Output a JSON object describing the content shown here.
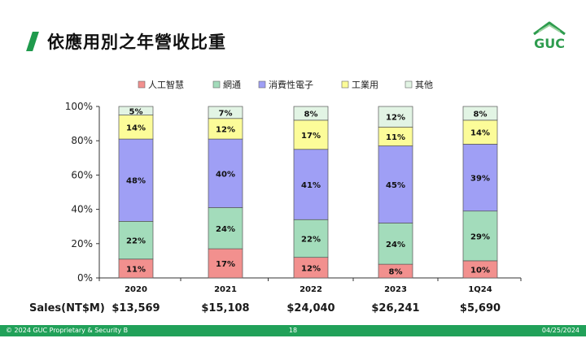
{
  "header": {
    "title": "依應用別之年營收比重",
    "logo_text": "GUC",
    "accent_color": "#1f9a4c"
  },
  "chart_data": {
    "type": "bar",
    "stacked": true,
    "categories": [
      "2020",
      "2021",
      "2022",
      "2023",
      "1Q24"
    ],
    "series": [
      {
        "name": "人工智慧",
        "color": "#f2908e",
        "values": [
          11,
          17,
          12,
          8,
          10
        ]
      },
      {
        "name": "網通",
        "color": "#a3dcbb",
        "values": [
          22,
          24,
          22,
          24,
          29
        ]
      },
      {
        "name": "消費性電子",
        "color": "#9f9ff5",
        "values": [
          48,
          40,
          41,
          45,
          39
        ]
      },
      {
        "name": "工業用",
        "color": "#fcfc99",
        "values": [
          14,
          12,
          17,
          11,
          14
        ]
      },
      {
        "name": "其他",
        "color": "#e2f4e4",
        "values": [
          5,
          7,
          8,
          12,
          8
        ]
      }
    ],
    "y_ticks": [
      "0%",
      "20%",
      "40%",
      "60%",
      "80%",
      "100%"
    ],
    "ylim": [
      0,
      100
    ],
    "legend_position": "top",
    "grid": false
  },
  "sales": {
    "label": "Sales(NT$M)",
    "values": [
      "$13,569",
      "$15,108",
      "$24,040",
      "$26,241",
      "$5,690"
    ]
  },
  "footer": {
    "left": "© 2024 GUC Proprietary & Security B",
    "page": "18",
    "date": "04/25/2024"
  }
}
